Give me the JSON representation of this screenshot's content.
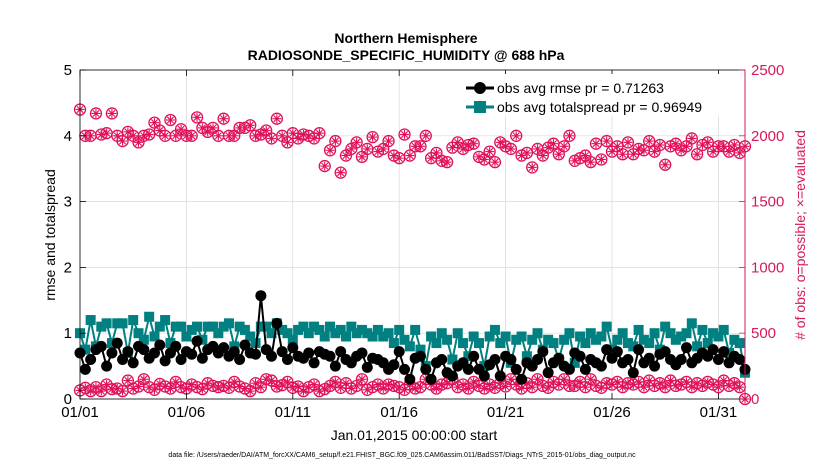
{
  "chart_data": {
    "type": "line",
    "title_lines": [
      "Northern Hemisphere",
      "RADIOSONDE_SPECIFIC_HUMIDITY @ 688 hPa"
    ],
    "xlabel": "Jan.01,2015 00:00:00 start",
    "ylabel_left": "rmse and totalspread",
    "ylabel_right": "# of obs: o=possible; ×=evaluated",
    "x_ticks": [
      "01/01",
      "01/06",
      "01/11",
      "01/16",
      "01/21",
      "01/26",
      "01/31"
    ],
    "x_tick_days": [
      0,
      5,
      10,
      15,
      20,
      25,
      30
    ],
    "xlim_days": [
      0,
      31.25
    ],
    "y_left_ticks": [
      "0",
      "1",
      "2",
      "3",
      "4",
      "5"
    ],
    "ylim_left": [
      0,
      5
    ],
    "y_right_ticks": [
      "0",
      "500",
      "1000",
      "1500",
      "2000",
      "2500"
    ],
    "ylim_right": [
      0,
      2500
    ],
    "legend_position": "top-right",
    "legend": [
      {
        "label": "obs avg rmse pr = 0.71263",
        "color": "#000000",
        "marker": "circle"
      },
      {
        "label": "obs avg totalspread pr = 0.96949",
        "color": "#008080",
        "marker": "square"
      }
    ],
    "series": [
      {
        "name": "obs avg rmse pr = 0.71263",
        "axis": "left",
        "color": "#000000",
        "values": [
          0.7,
          0.45,
          0.6,
          0.75,
          0.8,
          0.5,
          0.7,
          0.85,
          0.6,
          0.72,
          0.55,
          0.8,
          0.75,
          0.62,
          0.7,
          0.82,
          0.58,
          0.7,
          0.8,
          0.6,
          0.72,
          0.68,
          0.88,
          0.62,
          0.75,
          0.8,
          0.7,
          0.78,
          0.65,
          0.72,
          0.6,
          0.82,
          0.7,
          0.68,
          1.57,
          0.75,
          0.65,
          1.15,
          0.72,
          0.6,
          0.78,
          0.65,
          0.62,
          0.7,
          0.55,
          0.72,
          0.68,
          0.65,
          0.5,
          0.72,
          0.6,
          0.55,
          0.65,
          0.7,
          0.48,
          0.62,
          0.6,
          0.55,
          0.45,
          0.52,
          0.72,
          0.45,
          0.3,
          0.62,
          0.65,
          0.45,
          0.3,
          0.55,
          0.6,
          0.4,
          0.35,
          0.5,
          0.55,
          0.45,
          0.65,
          0.45,
          0.35,
          0.52,
          0.6,
          0.35,
          0.65,
          0.6,
          0.45,
          0.3,
          0.55,
          0.5,
          0.6,
          0.72,
          0.4,
          0.55,
          0.62,
          0.5,
          0.45,
          0.7,
          0.65,
          0.45,
          0.6,
          0.55,
          0.5,
          0.75,
          0.62,
          0.72,
          0.55,
          0.6,
          0.4,
          0.75,
          0.55,
          0.62,
          0.5,
          0.68,
          0.72,
          0.6,
          0.52,
          0.6,
          0.78,
          0.55,
          0.62,
          0.7,
          0.65,
          0.75,
          0.6,
          0.72,
          0.55,
          0.65,
          0.6,
          0.45
        ]
      },
      {
        "name": "obs avg totalspread pr = 0.96949",
        "axis": "left",
        "color": "#008080",
        "values": [
          1.0,
          0.75,
          1.2,
          0.8,
          1.1,
          1.15,
          0.85,
          1.15,
          1.15,
          0.7,
          1.2,
          1.0,
          0.9,
          1.25,
          0.95,
          1.1,
          1.2,
          0.85,
          1.1,
          1.1,
          0.95,
          1.05,
          1.1,
          0.9,
          1.1,
          1.1,
          1.0,
          1.1,
          1.15,
          0.8,
          1.1,
          1.05,
          0.95,
          0.85,
          1.1,
          1.1,
          1.0,
          1.15,
          1.05,
          1.0,
          0.9,
          1.05,
          1.1,
          1.0,
          1.1,
          1.05,
          0.95,
          1.1,
          1.0,
          1.05,
          0.95,
          1.1,
          1.0,
          1.05,
          1.0,
          0.95,
          1.05,
          0.95,
          1.0,
          0.85,
          1.05,
          0.9,
          0.8,
          1.05,
          0.75,
          0.5,
          0.95,
          0.85,
          1.0,
          0.9,
          0.6,
          1.0,
          0.85,
          0.65,
          0.95,
          0.85,
          0.5,
          0.95,
          1.05,
          0.85,
          0.95,
          0.55,
          0.9,
          0.95,
          0.65,
          0.9,
          1.0,
          0.75,
          0.9,
          0.85,
          0.6,
          0.9,
          1.0,
          0.55,
          0.95,
          0.85,
          1.0,
          0.9,
          0.95,
          1.1,
          0.75,
          0.9,
          1.0,
          0.85,
          0.8,
          1.05,
          0.9,
          0.85,
          1.0,
          0.75,
          1.1,
          1.0,
          0.9,
          0.95,
          1.0,
          1.15,
          0.8,
          1.05,
          0.85,
          1.0,
          0.95,
          1.05,
          0.7,
          0.9,
          0.85,
          0.4
        ]
      },
      {
        "name": "",
        "axis": "right",
        "color": "#e0105a",
        "marker": "circle-and-asterisk",
        "values": [
          2200,
          2000,
          2000,
          2170,
          2010,
          2020,
          2170,
          2000,
          1960,
          2030,
          2000,
          1950,
          2000,
          2010,
          2100,
          2040,
          2000,
          2120,
          2000,
          2050,
          2000,
          2000,
          2140,
          2060,
          2030,
          2060,
          2000,
          2130,
          2000,
          2000,
          2060,
          2060,
          2080,
          2000,
          2010,
          2040,
          1980,
          2130,
          2000,
          1950,
          2020,
          1980,
          2010,
          2000,
          1980,
          2020,
          1770,
          1890,
          1960,
          1720,
          1850,
          1900,
          1950,
          1840,
          1900,
          1990,
          1880,
          1900,
          1960,
          1850,
          1830,
          2010,
          1850,
          1920,
          1920,
          2000,
          1830,
          1870,
          1810,
          1800,
          1910,
          1950,
          1900,
          1930,
          1940,
          1840,
          1820,
          1880,
          1800,
          1950,
          1920,
          1900,
          2000,
          1850,
          1870,
          1760,
          1900,
          1850,
          1910,
          1940,
          1860,
          1920,
          2000,
          1810,
          1830,
          1850,
          1800,
          1940,
          1820,
          1960,
          1880,
          1920,
          1860,
          1950,
          1860,
          1900,
          1890,
          1960,
          1880,
          1930,
          1780,
          1920,
          1940,
          1890,
          1920,
          1980,
          1860,
          1930,
          1950,
          1880,
          1920,
          1920,
          1880,
          1930,
          1870,
          1920
        ]
      },
      {
        "name": "",
        "axis": "right",
        "color": "#e0105a",
        "marker": "circle-and-asterisk",
        "values": [
          65,
          85,
          60,
          90,
          60,
          110,
          75,
          80,
          60,
          140,
          80,
          95,
          150,
          90,
          70,
          115,
          95,
          80,
          130,
          90,
          80,
          110,
          90,
          75,
          120,
          100,
          90,
          100,
          85,
          130,
          95,
          80,
          60,
          120,
          90,
          150,
          140,
          95,
          105,
          130,
          85,
          95,
          60,
          90,
          110,
          60,
          75,
          100,
          130,
          85,
          120,
          80,
          100,
          150,
          70,
          90,
          110,
          80,
          110,
          100,
          90,
          70,
          110,
          80,
          90,
          150,
          110,
          80,
          110,
          120,
          150,
          90,
          110,
          80,
          130,
          100,
          80,
          110,
          85,
          120,
          95,
          150,
          110,
          80,
          120,
          90,
          150,
          100,
          85,
          130,
          110,
          150,
          100,
          100,
          130,
          90,
          150,
          100,
          85,
          120,
          110,
          130,
          90,
          120,
          110,
          130,
          90,
          140,
          100,
          120,
          90,
          140,
          100,
          110,
          130,
          90,
          120,
          100,
          130,
          110,
          90,
          140,
          100,
          120,
          90,
          0
        ]
      }
    ]
  },
  "footer": "data file: /Users/raeder/DAI/ATM_forcXX/CAM6_setup/f.e21.FHIST_BGC.f09_025.CAM6assim.011/BadSST/Diags_NTrS_2015-01/obs_diag_output.nc"
}
